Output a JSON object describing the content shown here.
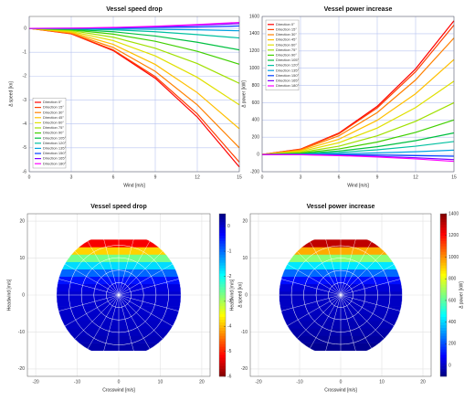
{
  "chart_data": [
    {
      "type": "line",
      "title": "Vessel speed drop",
      "xlabel": "Wind [m/s]",
      "ylabel": "Δ speed [kn]",
      "x": [
        0,
        3,
        6,
        9,
        12,
        15
      ],
      "xlim": [
        0,
        15
      ],
      "xticks": [
        0,
        3,
        6,
        9,
        12,
        15
      ],
      "ylim": [
        -6,
        0.5
      ],
      "yticks": [
        -6,
        -5,
        -4,
        -3,
        -2,
        -1,
        0
      ],
      "grid": true,
      "legend": "lower left",
      "series": [
        {
          "name": "Direction 0°",
          "color": "#ff0000",
          "values": [
            0,
            -0.23,
            -0.93,
            -2.09,
            -3.71,
            -5.8
          ]
        },
        {
          "name": "Direction 15°",
          "color": "#ff4000",
          "values": [
            0,
            -0.22,
            -0.9,
            -2.02,
            -3.58,
            -5.6
          ]
        },
        {
          "name": "Direction 30°",
          "color": "#ff8000",
          "values": [
            0,
            -0.2,
            -0.8,
            -1.8,
            -3.2,
            -5
          ]
        },
        {
          "name": "Direction 45°",
          "color": "#ffbf00",
          "values": [
            0,
            -0.17,
            -0.67,
            -1.51,
            -2.69,
            -4.2
          ]
        },
        {
          "name": "Direction 60°",
          "color": "#e0e000",
          "values": [
            0,
            -0.13,
            -0.51,
            -1.15,
            -2.05,
            -3.2
          ]
        },
        {
          "name": "Direction 75°",
          "color": "#a0e000",
          "values": [
            0,
            -0.09,
            -0.37,
            -0.83,
            -1.47,
            -2.3
          ]
        },
        {
          "name": "Direction 90°",
          "color": "#40d000",
          "values": [
            0,
            -0.06,
            -0.24,
            -0.54,
            -0.96,
            -1.5
          ]
        },
        {
          "name": "Direction 105°",
          "color": "#00c040",
          "values": [
            0,
            -0.04,
            -0.14,
            -0.32,
            -0.58,
            -0.9
          ]
        },
        {
          "name": "Direction 120°",
          "color": "#00c0a0",
          "values": [
            0,
            -0.02,
            -0.06,
            -0.14,
            -0.26,
            -0.4
          ]
        },
        {
          "name": "Direction 135°",
          "color": "#00a0e0",
          "values": [
            0,
            0,
            -0.02,
            -0.04,
            -0.06,
            -0.1
          ]
        },
        {
          "name": "Direction 150°",
          "color": "#0040ff",
          "values": [
            0,
            0,
            0.02,
            0.04,
            0.06,
            0.1
          ]
        },
        {
          "name": "Direction 165°",
          "color": "#8000ff",
          "values": [
            0,
            0.01,
            0.03,
            0.07,
            0.13,
            0.2
          ]
        },
        {
          "name": "Direction 180°",
          "color": "#ff00ff",
          "values": [
            0,
            0.01,
            0.04,
            0.09,
            0.16,
            0.25
          ]
        }
      ]
    },
    {
      "type": "line",
      "title": "Vessel power increase",
      "xlabel": "Wind [m/s]",
      "ylabel": "Δ power [kW]",
      "x": [
        0,
        3,
        6,
        9,
        12,
        15
      ],
      "xlim": [
        0,
        15
      ],
      "xticks": [
        0,
        3,
        6,
        9,
        12,
        15
      ],
      "ylim": [
        -200,
        1600
      ],
      "yticks": [
        -200,
        0,
        200,
        400,
        600,
        800,
        1000,
        1200,
        1400,
        1600
      ],
      "grid": true,
      "legend": "upper left",
      "series": [
        {
          "name": "Direction 0°",
          "color": "#ff0000",
          "values": [
            0,
            62,
            248,
            558,
            992,
            1550
          ]
        },
        {
          "name": "Direction 15°",
          "color": "#ff4000",
          "values": [
            0,
            60,
            240,
            540,
            960,
            1500
          ]
        },
        {
          "name": "Direction 30°",
          "color": "#ff8000",
          "values": [
            0,
            54,
            216,
            486,
            864,
            1350
          ]
        },
        {
          "name": "Direction 45°",
          "color": "#ffbf00",
          "values": [
            0,
            44,
            176,
            396,
            704,
            1100
          ]
        },
        {
          "name": "Direction 60°",
          "color": "#e0e000",
          "values": [
            0,
            34,
            136,
            306,
            544,
            850
          ]
        },
        {
          "name": "Direction 75°",
          "color": "#a0e000",
          "values": [
            0,
            24,
            96,
            216,
            384,
            600
          ]
        },
        {
          "name": "Direction 90°",
          "color": "#40d000",
          "values": [
            0,
            16,
            64,
            144,
            256,
            400
          ]
        },
        {
          "name": "Direction 105°",
          "color": "#00c040",
          "values": [
            0,
            10,
            40,
            90,
            160,
            250
          ]
        },
        {
          "name": "Direction 120°",
          "color": "#00c0a0",
          "values": [
            0,
            6,
            24,
            54,
            96,
            150
          ]
        },
        {
          "name": "Direction 135°",
          "color": "#00a0e0",
          "values": [
            0,
            2,
            8,
            18,
            32,
            50
          ]
        },
        {
          "name": "Direction 150°",
          "color": "#0040ff",
          "values": [
            0,
            -1,
            -3,
            -7,
            -13,
            -20
          ]
        },
        {
          "name": "Direction 165°",
          "color": "#8000ff",
          "values": [
            0,
            -2,
            -10,
            -22,
            -38,
            -60
          ]
        },
        {
          "name": "Direction 180°",
          "color": "#ff00ff",
          "values": [
            0,
            -3,
            -13,
            -29,
            -51,
            -80
          ]
        }
      ]
    },
    {
      "type": "polar_heatmap",
      "title": "Vessel speed drop",
      "xlabel": "Crosswind [m/s]",
      "ylabel": "Headwind [m/s]",
      "cbar_label": "Δ speed [kn]",
      "colormap_reversed": true,
      "xlim": [
        -22,
        22
      ],
      "xticks": [
        -20,
        -10,
        0,
        10,
        20
      ],
      "ylim": [
        -22,
        22
      ],
      "yticks": [
        -20,
        -10,
        0,
        10,
        20
      ],
      "headwind_edges": [
        -15,
        -13,
        -11,
        -9,
        -7,
        -5,
        -3,
        -1,
        1,
        3,
        5,
        7,
        9,
        11,
        13,
        15
      ],
      "values": [
        0.22,
        0.16,
        0.11,
        0.07,
        0.04,
        0.02,
        0,
        -0.01,
        -0.11,
        -0.43,
        -0.96,
        -1.71,
        -2.67,
        -3.84,
        -5.23
      ],
      "clim": [
        -6,
        0.5
      ],
      "cticks": [
        -6,
        -5,
        -4,
        -3,
        -2,
        -1,
        0
      ]
    },
    {
      "type": "polar_heatmap",
      "title": "Vessel power increase",
      "xlabel": "Crosswind [m/s]",
      "ylabel": "Headwind [m/s]",
      "cbar_label": "Δ power [kW]",
      "colormap_reversed": false,
      "xlim": [
        -22,
        22
      ],
      "xticks": [
        -20,
        -10,
        0,
        10,
        20
      ],
      "ylim": [
        -22,
        22
      ],
      "yticks": [
        -20,
        -10,
        0,
        10,
        20
      ],
      "headwind_edges": [
        -15,
        -13,
        -11,
        -9,
        -7,
        -5,
        -3,
        -1,
        1,
        3,
        5,
        7,
        9,
        11,
        13,
        15
      ],
      "values": [
        -75,
        -55,
        -38,
        -24,
        -13,
        -5,
        -1,
        0,
        27,
        107,
        240,
        427,
        667,
        960,
        1307
      ],
      "clim": [
        -100,
        1400
      ],
      "cticks": [
        0,
        200,
        400,
        600,
        800,
        1000,
        1200,
        1400
      ]
    }
  ]
}
